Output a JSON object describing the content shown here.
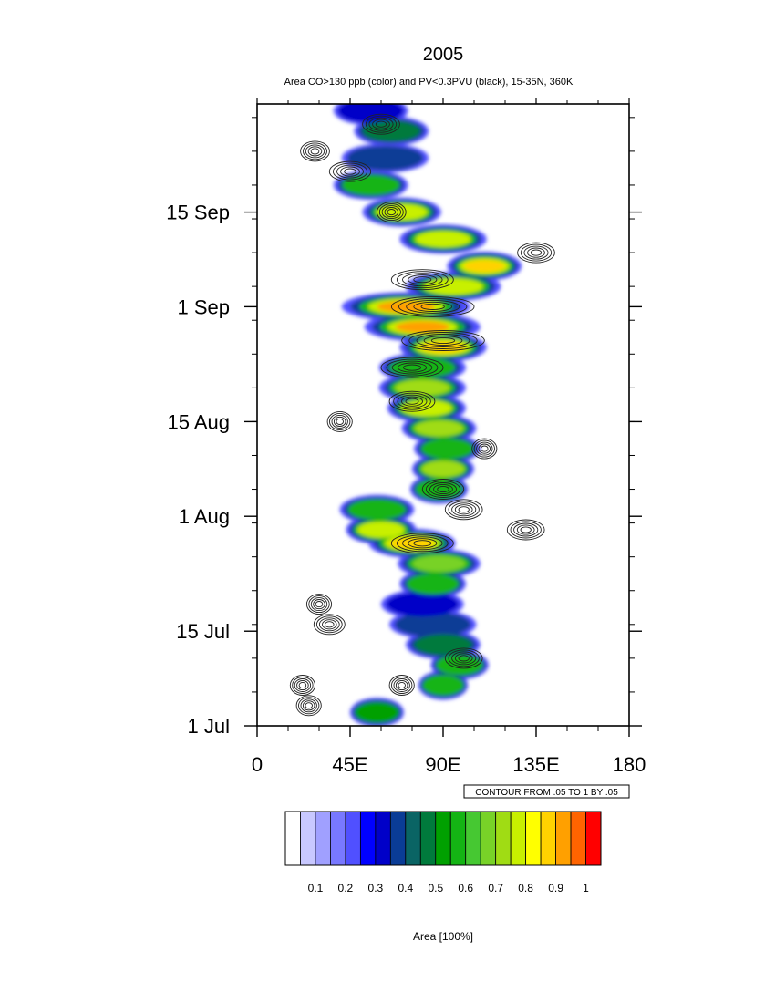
{
  "chart_data": {
    "type": "heatmap",
    "title": "2005",
    "subtitle": "Area CO>130 ppb (color) and PV<0.3PVU (black), 15-35N, 360K",
    "x_axis": {
      "range": [
        0,
        180
      ],
      "tick_values": [
        0,
        45,
        90,
        135,
        180
      ],
      "tick_labels": [
        "0",
        "45E",
        "90E",
        "135E",
        "180"
      ]
    },
    "y_axis": {
      "range": [
        "1 Jul",
        "29 Sep"
      ],
      "tick_labels": [
        "1 Jul",
        "15 Jul",
        "1 Aug",
        "15 Aug",
        "1 Sep",
        "15 Sep"
      ],
      "tick_day_offsets": [
        0,
        14,
        31,
        45,
        62,
        76
      ],
      "total_days": 92
    },
    "contour_info": "CONTOUR FROM .05 TO 1 BY .05",
    "colorbar": {
      "label": "Area [100%]",
      "tick_labels": [
        "0.1",
        "0.2",
        "0.3",
        "0.4",
        "0.5",
        "0.6",
        "0.7",
        "0.8",
        "0.9",
        "1"
      ],
      "levels": [
        0,
        0.05,
        0.1,
        0.15,
        0.2,
        0.25,
        0.3,
        0.35,
        0.4,
        0.45,
        0.5,
        0.55,
        0.6,
        0.65,
        0.7,
        0.75,
        0.8,
        0.85,
        0.9,
        0.95,
        1.0
      ],
      "colors": [
        "#ffffff",
        "#c8c8ff",
        "#a0a0ff",
        "#7878ff",
        "#5050ff",
        "#0000ff",
        "#0000c8",
        "#0a3c96",
        "#0a6464",
        "#007a3c",
        "#00a000",
        "#14b414",
        "#46c832",
        "#78d228",
        "#a0dc14",
        "#c8f000",
        "#ffff00",
        "#ffd200",
        "#ffa000",
        "#ff6400",
        "#ff0000"
      ]
    },
    "co_area_features": [
      {
        "day": 2,
        "lon": 58,
        "width": 14,
        "value": 0.5
      },
      {
        "day": 6,
        "lon": 90,
        "width": 12,
        "value": 0.55
      },
      {
        "day": 9,
        "lon": 98,
        "width": 16,
        "value": 0.6
      },
      {
        "day": 12,
        "lon": 90,
        "width": 24,
        "value": 0.45
      },
      {
        "day": 15,
        "lon": 85,
        "width": 30,
        "value": 0.35
      },
      {
        "day": 18,
        "lon": 80,
        "width": 28,
        "value": 0.3
      },
      {
        "day": 21,
        "lon": 85,
        "width": 20,
        "value": 0.55
      },
      {
        "day": 24,
        "lon": 88,
        "width": 28,
        "value": 0.65
      },
      {
        "day": 27,
        "lon": 75,
        "width": 30,
        "value": 0.85
      },
      {
        "day": 29,
        "lon": 60,
        "width": 22,
        "value": 0.75
      },
      {
        "day": 32,
        "lon": 58,
        "width": 24,
        "value": 0.55
      },
      {
        "day": 35,
        "lon": 88,
        "width": 16,
        "value": 0.55
      },
      {
        "day": 38,
        "lon": 90,
        "width": 18,
        "value": 0.7
      },
      {
        "day": 41,
        "lon": 92,
        "width": 20,
        "value": 0.6
      },
      {
        "day": 44,
        "lon": 88,
        "width": 24,
        "value": 0.7
      },
      {
        "day": 47,
        "lon": 82,
        "width": 26,
        "value": 0.75
      },
      {
        "day": 50,
        "lon": 80,
        "width": 30,
        "value": 0.7
      },
      {
        "day": 53,
        "lon": 80,
        "width": 30,
        "value": 0.6
      },
      {
        "day": 56,
        "lon": 90,
        "width": 30,
        "value": 0.85
      },
      {
        "day": 59,
        "lon": 80,
        "width": 44,
        "value": 0.9
      },
      {
        "day": 62,
        "lon": 72,
        "width": 50,
        "value": 0.9
      },
      {
        "day": 65,
        "lon": 95,
        "width": 34,
        "value": 0.8
      },
      {
        "day": 68,
        "lon": 110,
        "width": 24,
        "value": 0.85
      },
      {
        "day": 72,
        "lon": 90,
        "width": 30,
        "value": 0.75
      },
      {
        "day": 76,
        "lon": 70,
        "width": 26,
        "value": 0.75
      },
      {
        "day": 80,
        "lon": 55,
        "width": 24,
        "value": 0.6
      },
      {
        "day": 84,
        "lon": 62,
        "width": 30,
        "value": 0.4
      },
      {
        "day": 88,
        "lon": 65,
        "width": 24,
        "value": 0.45
      },
      {
        "day": 91,
        "lon": 55,
        "width": 24,
        "value": 0.3
      }
    ],
    "pv_contour_clusters": [
      {
        "day": 3,
        "lon": 25,
        "width": 12
      },
      {
        "day": 6,
        "lon": 22,
        "width": 12
      },
      {
        "day": 6,
        "lon": 70,
        "width": 12
      },
      {
        "day": 10,
        "lon": 100,
        "width": 18
      },
      {
        "day": 15,
        "lon": 35,
        "width": 15
      },
      {
        "day": 18,
        "lon": 30,
        "width": 12
      },
      {
        "day": 27,
        "lon": 80,
        "width": 30
      },
      {
        "day": 29,
        "lon": 130,
        "width": 18
      },
      {
        "day": 32,
        "lon": 100,
        "width": 18
      },
      {
        "day": 35,
        "lon": 90,
        "width": 20
      },
      {
        "day": 41,
        "lon": 110,
        "width": 12
      },
      {
        "day": 45,
        "lon": 40,
        "width": 12
      },
      {
        "day": 48,
        "lon": 75,
        "width": 22
      },
      {
        "day": 53,
        "lon": 75,
        "width": 30
      },
      {
        "day": 57,
        "lon": 90,
        "width": 40
      },
      {
        "day": 62,
        "lon": 85,
        "width": 40
      },
      {
        "day": 66,
        "lon": 80,
        "width": 30
      },
      {
        "day": 70,
        "lon": 135,
        "width": 18
      },
      {
        "day": 76,
        "lon": 65,
        "width": 14
      },
      {
        "day": 82,
        "lon": 45,
        "width": 20
      },
      {
        "day": 85,
        "lon": 28,
        "width": 14
      },
      {
        "day": 89,
        "lon": 60,
        "width": 18
      }
    ]
  }
}
